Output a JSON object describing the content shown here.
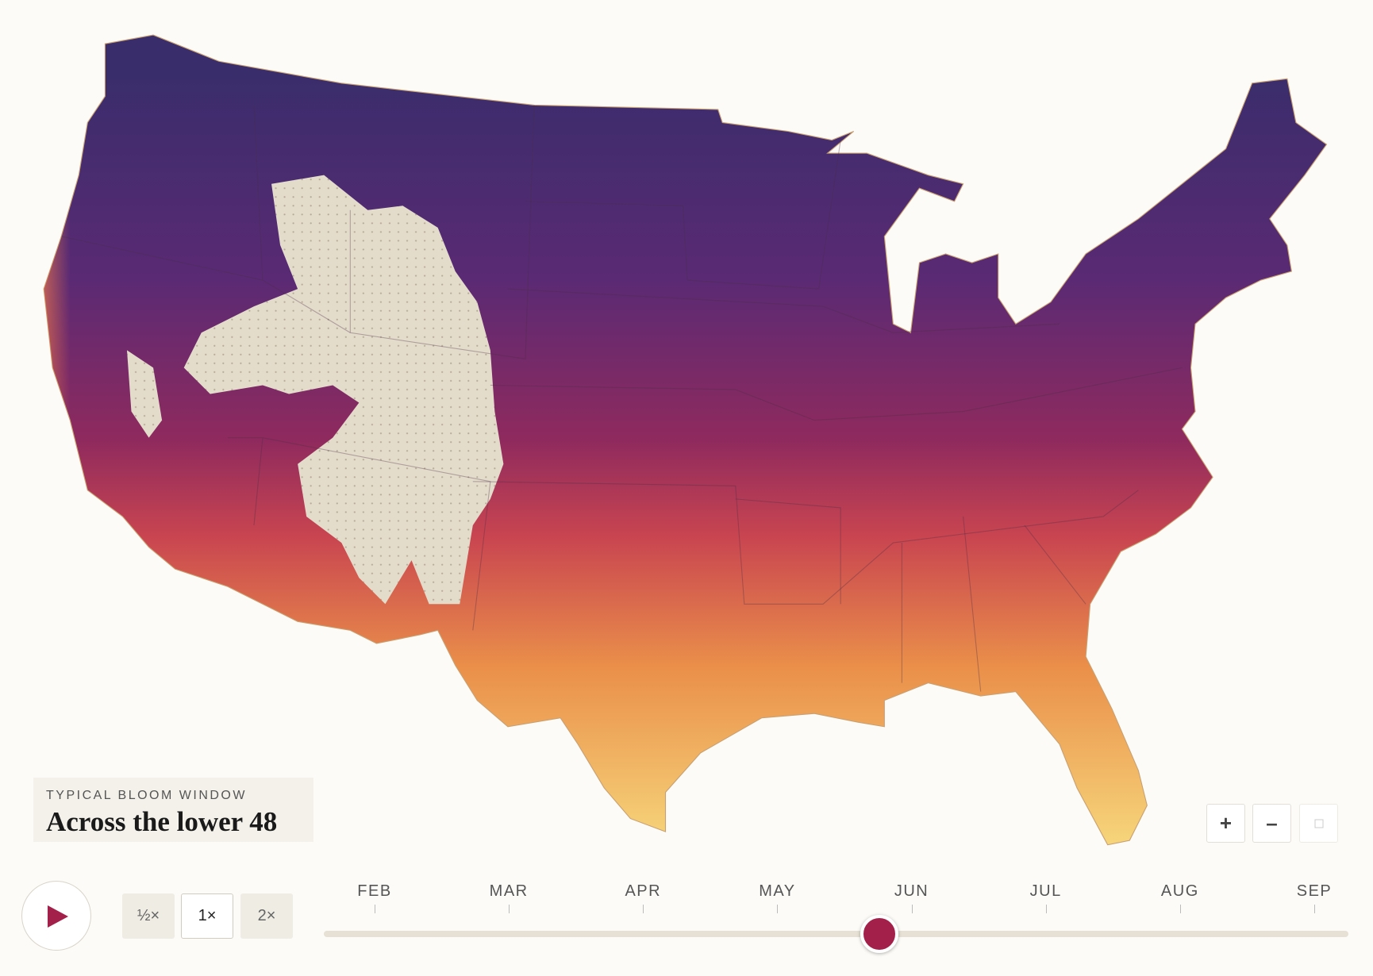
{
  "legend": {
    "kicker": "TYPICAL BLOOM WINDOW",
    "title": "Across the lower 48"
  },
  "controls": {
    "speeds": [
      "½×",
      "1×",
      "2×"
    ],
    "zoom": [
      "+",
      "–"
    ]
  },
  "timeline": {
    "months": [
      "FEB",
      "MAR",
      "APR",
      "MAY",
      "JUN",
      "JUL",
      "AUG",
      "SEP"
    ]
  }
}
